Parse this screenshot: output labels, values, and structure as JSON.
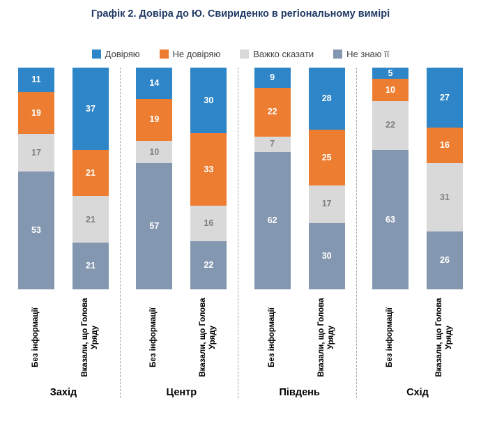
{
  "title": "Графік 2. Довіра до Ю. Свириденко в регіональному вимірі",
  "legend": [
    {
      "label": "Довіряю",
      "color": "#2E86C8"
    },
    {
      "label": "Не довіряю",
      "color": "#ED7D31"
    },
    {
      "label": "Важко сказати",
      "color": "#D9D9D9"
    },
    {
      "label": "Не знаю її",
      "color": "#8497B0"
    }
  ],
  "colors": {
    "title_text": "#1F3864",
    "muted_segment_label": "#7F7F7F",
    "separator": "#A6A6A6"
  },
  "chart_data": {
    "type": "bar",
    "stacked": true,
    "units": "percent",
    "legend_position": "top",
    "grid": false,
    "series_keys": [
      "trust",
      "distrust",
      "hard-to-say",
      "dont-know-her"
    ],
    "segment_order_top_to_bottom": [
      "Довіряю",
      "Не довіряю",
      "Важко сказати",
      "Не знаю її"
    ],
    "groups": [
      {
        "region": "Захід",
        "bars": [
          {
            "label": "Без інформації",
            "values": [
              11,
              19,
              17,
              53
            ]
          },
          {
            "label": "Вказали, що Голова Уряду",
            "values": [
              37,
              21,
              21,
              21
            ]
          }
        ]
      },
      {
        "region": "Центр",
        "bars": [
          {
            "label": "Без інформації",
            "values": [
              14,
              19,
              10,
              57
            ]
          },
          {
            "label": "Вказали, що Голова Уряду",
            "values": [
              30,
              33,
              16,
              22
            ]
          }
        ]
      },
      {
        "region": "Південь",
        "bars": [
          {
            "label": "Без інформації",
            "values": [
              9,
              22,
              7,
              62
            ]
          },
          {
            "label": "Вказали, що Голова Уряду",
            "values": [
              28,
              25,
              17,
              30
            ]
          }
        ]
      },
      {
        "region": "Схід",
        "bars": [
          {
            "label": "Без інформації",
            "values": [
              5,
              10,
              22,
              63
            ]
          },
          {
            "label": "Вказали, що Голова Уряду",
            "values": [
              27,
              16,
              31,
              26
            ]
          }
        ]
      }
    ]
  }
}
